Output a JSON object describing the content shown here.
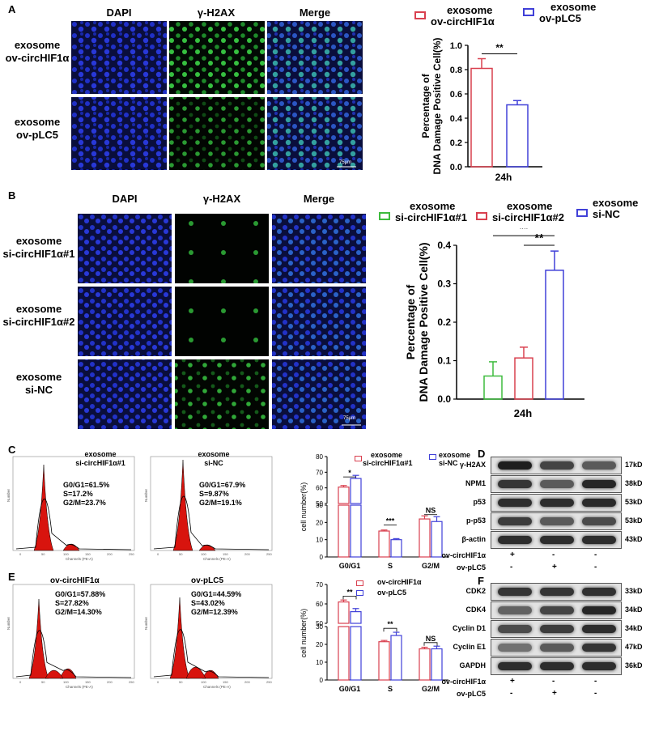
{
  "panels": {
    "A": "A",
    "B": "B",
    "C": "C",
    "D": "D",
    "E": "E",
    "F": "F"
  },
  "panelA": {
    "headers": [
      "DAPI",
      "γ-H2AX",
      "Merge"
    ],
    "rows": [
      [
        "exosome",
        "ov-circHIF1α"
      ],
      [
        "exosome",
        "ov-pLC5"
      ]
    ],
    "scale": "75μm",
    "legend": [
      [
        "exosome",
        "ov-circHIF1α"
      ],
      [
        "exosome",
        "ov-pLC5"
      ]
    ],
    "colors": [
      "#d9404f",
      "#4040d8"
    ],
    "ylabel1": "Percentage of",
    "ylabel2": "DNA Damage Positive Cell(%)",
    "xlabel": "24h",
    "sig": "**",
    "yticks": [
      "0.0",
      "0.2",
      "0.4",
      "0.6",
      "0.8",
      "1.0"
    ]
  },
  "panelB": {
    "headers": [
      "DAPI",
      "γ-H2AX",
      "Merge"
    ],
    "rows": [
      [
        "exosome",
        "si-circHIF1α#1"
      ],
      [
        "exosome",
        "si-circHIF1α#2"
      ],
      [
        "exosome",
        "si-NC"
      ]
    ],
    "scale": "75μm",
    "legend": [
      [
        "exosome",
        "si-circHIF1α#1"
      ],
      [
        "exosome",
        "si-circHIF1α#2"
      ],
      [
        "exosome",
        "si-NC"
      ]
    ],
    "colors": [
      "#3dbb3d",
      "#d9404f",
      "#4040d8"
    ],
    "ylabel1": "Percentage of",
    "ylabel2": "DNA Damage Positive Cell(%)",
    "xlabel": "24h",
    "sig1": "**",
    "sig2": "**",
    "yticks": [
      "0.0",
      "0.1",
      "0.2",
      "0.3",
      "0.4"
    ]
  },
  "panelC": {
    "flow1": {
      "title1": "exosome",
      "title2": "si-circHIF1α#1",
      "g0": "G0/G1=61.5%",
      "s": "S=17.2%",
      "g2": "G2/M=23.7%"
    },
    "flow2": {
      "title1": "exosome",
      "title2": "si-NC",
      "g0": "G0/G1=67.9%",
      "s": "S=9.87%",
      "g2": "G2/M=19.1%"
    },
    "legend": [
      [
        "exosome",
        "si-circHIF1α#1"
      ],
      [
        "exosome",
        "si-NC"
      ]
    ],
    "ylabel": "cell number(%)",
    "categories": [
      "G0/G1",
      "S",
      "G2/M"
    ],
    "sigs": [
      "*",
      "***",
      "NS"
    ],
    "yticks_top": [
      "50",
      "60",
      "70",
      "80"
    ],
    "yticks_bot": [
      "0",
      "10",
      "20",
      "30"
    ]
  },
  "panelE": {
    "flow1": {
      "title1": "ov-circHIF1α",
      "g0": "G0/G1=57.88%",
      "s": "S=27.82%",
      "g2": "G2/M=14.30%"
    },
    "flow2": {
      "title1": "ov-pLC5",
      "g0": "G0/G1=44.59%",
      "s": "S=43.02%",
      "g2": "G2/M=12.39%"
    },
    "legend": [
      "ov-circHIF1α",
      "ov-pLC5"
    ],
    "ylabel": "cell number(%)",
    "categories": [
      "G0/G1",
      "S",
      "G2/M"
    ],
    "sigs": [
      "**",
      "**",
      "NS"
    ],
    "yticks_top": [
      "50",
      "60",
      "70"
    ],
    "yticks_bot": [
      "0",
      "10",
      "20",
      "30"
    ]
  },
  "panelD": {
    "rows": [
      {
        "label": "γ-H2AX",
        "kd": "17kD"
      },
      {
        "label": "NPM1",
        "kd": "38kD"
      },
      {
        "label": "p53",
        "kd": "53kD"
      },
      {
        "label": "p-p53",
        "kd": "53kD"
      },
      {
        "label": "β-actin",
        "kd": "43kD"
      }
    ],
    "cond1": "ov-circHIF1α",
    "cond2": "ov-pLC5",
    "cond1_vals": [
      "+",
      "-",
      "-"
    ],
    "cond2_vals": [
      "-",
      "+",
      "-"
    ]
  },
  "panelF": {
    "rows": [
      {
        "label": "CDK2",
        "kd": "33kD"
      },
      {
        "label": "CDK4",
        "kd": "34kD"
      },
      {
        "label": "Cyclin D1",
        "kd": "34kD"
      },
      {
        "label": "Cyclin E1",
        "kd": "47kD"
      },
      {
        "label": "GAPDH",
        "kd": "36kD"
      }
    ],
    "cond1": "ov-circHIF1α",
    "cond2": "ov-pLC5",
    "cond1_vals": [
      "+",
      "-",
      "-"
    ],
    "cond2_vals": [
      "-",
      "+",
      "-"
    ]
  },
  "chart_data": [
    {
      "type": "bar",
      "title": "",
      "xlabel": "24h",
      "ylabel": "Percentage of DNA Damage Positive Cell(%)",
      "categories": [
        "24h"
      ],
      "ylim": [
        0,
        1.0
      ],
      "series": [
        {
          "name": "exosome ov-circHIF1α",
          "values": [
            0.81
          ]
        },
        {
          "name": "exosome ov-pLC5",
          "values": [
            0.51
          ]
        }
      ]
    },
    {
      "type": "bar",
      "title": "",
      "xlabel": "24h",
      "ylabel": "Percentage of DNA Damage Positive Cell(%)",
      "categories": [
        "24h"
      ],
      "ylim": [
        0,
        0.4
      ],
      "series": [
        {
          "name": "exosome si-circHIF1α#1",
          "values": [
            0.06
          ]
        },
        {
          "name": "exosome si-circHIF1α#2",
          "values": [
            0.107
          ]
        },
        {
          "name": "exosome si-NC",
          "values": [
            0.335
          ]
        }
      ]
    },
    {
      "type": "bar",
      "title": "",
      "xlabel": "",
      "ylabel": "cell number(%)",
      "categories": [
        "G0/G1",
        "S",
        "G2/M"
      ],
      "ylim": [
        0,
        80
      ],
      "series": [
        {
          "name": "exosome si-circHIF1α#1",
          "values": [
            60.5,
            15,
            22
          ]
        },
        {
          "name": "exosome si-NC",
          "values": [
            66,
            10,
            20.5
          ]
        }
      ]
    },
    {
      "type": "bar",
      "title": "",
      "xlabel": "",
      "ylabel": "cell number(%)",
      "categories": [
        "G0/G1",
        "S",
        "G2/M"
      ],
      "ylim": [
        0,
        70
      ],
      "series": [
        {
          "name": "ov-circHIF1α",
          "values": [
            61,
            21.5,
            17.5
          ]
        },
        {
          "name": "ov-pLC5",
          "values": [
            56,
            25,
            17.5
          ]
        }
      ]
    }
  ]
}
